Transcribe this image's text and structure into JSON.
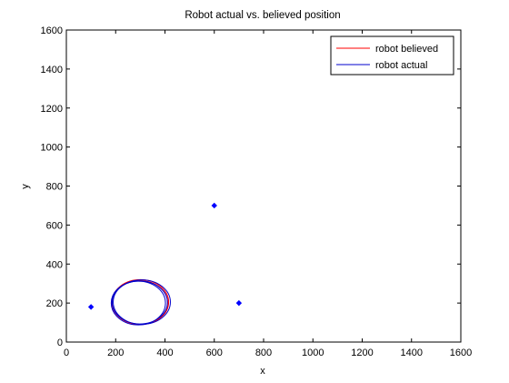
{
  "chart_data": {
    "type": "line",
    "title": "Robot actual vs. believed position",
    "xlabel": "x",
    "ylabel": "y",
    "xlim": [
      0,
      1600
    ],
    "ylim": [
      0,
      1600
    ],
    "xticks": [
      0,
      200,
      400,
      600,
      800,
      1000,
      1200,
      1400,
      1600
    ],
    "yticks": [
      0,
      200,
      400,
      600,
      800,
      1000,
      1200,
      1400,
      1600
    ],
    "xtick_labels": [
      "0",
      "200",
      "400",
      "600",
      "800",
      "1000",
      "1200",
      "1400",
      "1600"
    ],
    "ytick_labels": [
      "0",
      "200",
      "400",
      "600",
      "800",
      "1000",
      "1200",
      "1400",
      "1600"
    ],
    "grid": false,
    "legend": {
      "placement": "top-right",
      "entries": [
        "robot believed",
        "robot actual"
      ]
    },
    "series": [
      {
        "name": "robot believed",
        "color": "#ff0000",
        "loops": [
          {
            "cx": 300,
            "cy": 205,
            "rx": 115,
            "ry": 115
          },
          {
            "cx": 298,
            "cy": 203,
            "rx": 113,
            "ry": 112
          }
        ]
      },
      {
        "name": "robot actual",
        "color": "#0000cc",
        "loops": [
          {
            "cx": 298,
            "cy": 203,
            "rx": 112,
            "ry": 110
          },
          {
            "cx": 306,
            "cy": 205,
            "rx": 116,
            "ry": 114
          },
          {
            "cx": 292,
            "cy": 200,
            "rx": 110,
            "ry": 112
          }
        ]
      }
    ],
    "landmarks": {
      "color": "#0000ff",
      "points": [
        {
          "x": 100,
          "y": 180
        },
        {
          "x": 600,
          "y": 700
        },
        {
          "x": 700,
          "y": 200
        }
      ]
    }
  }
}
